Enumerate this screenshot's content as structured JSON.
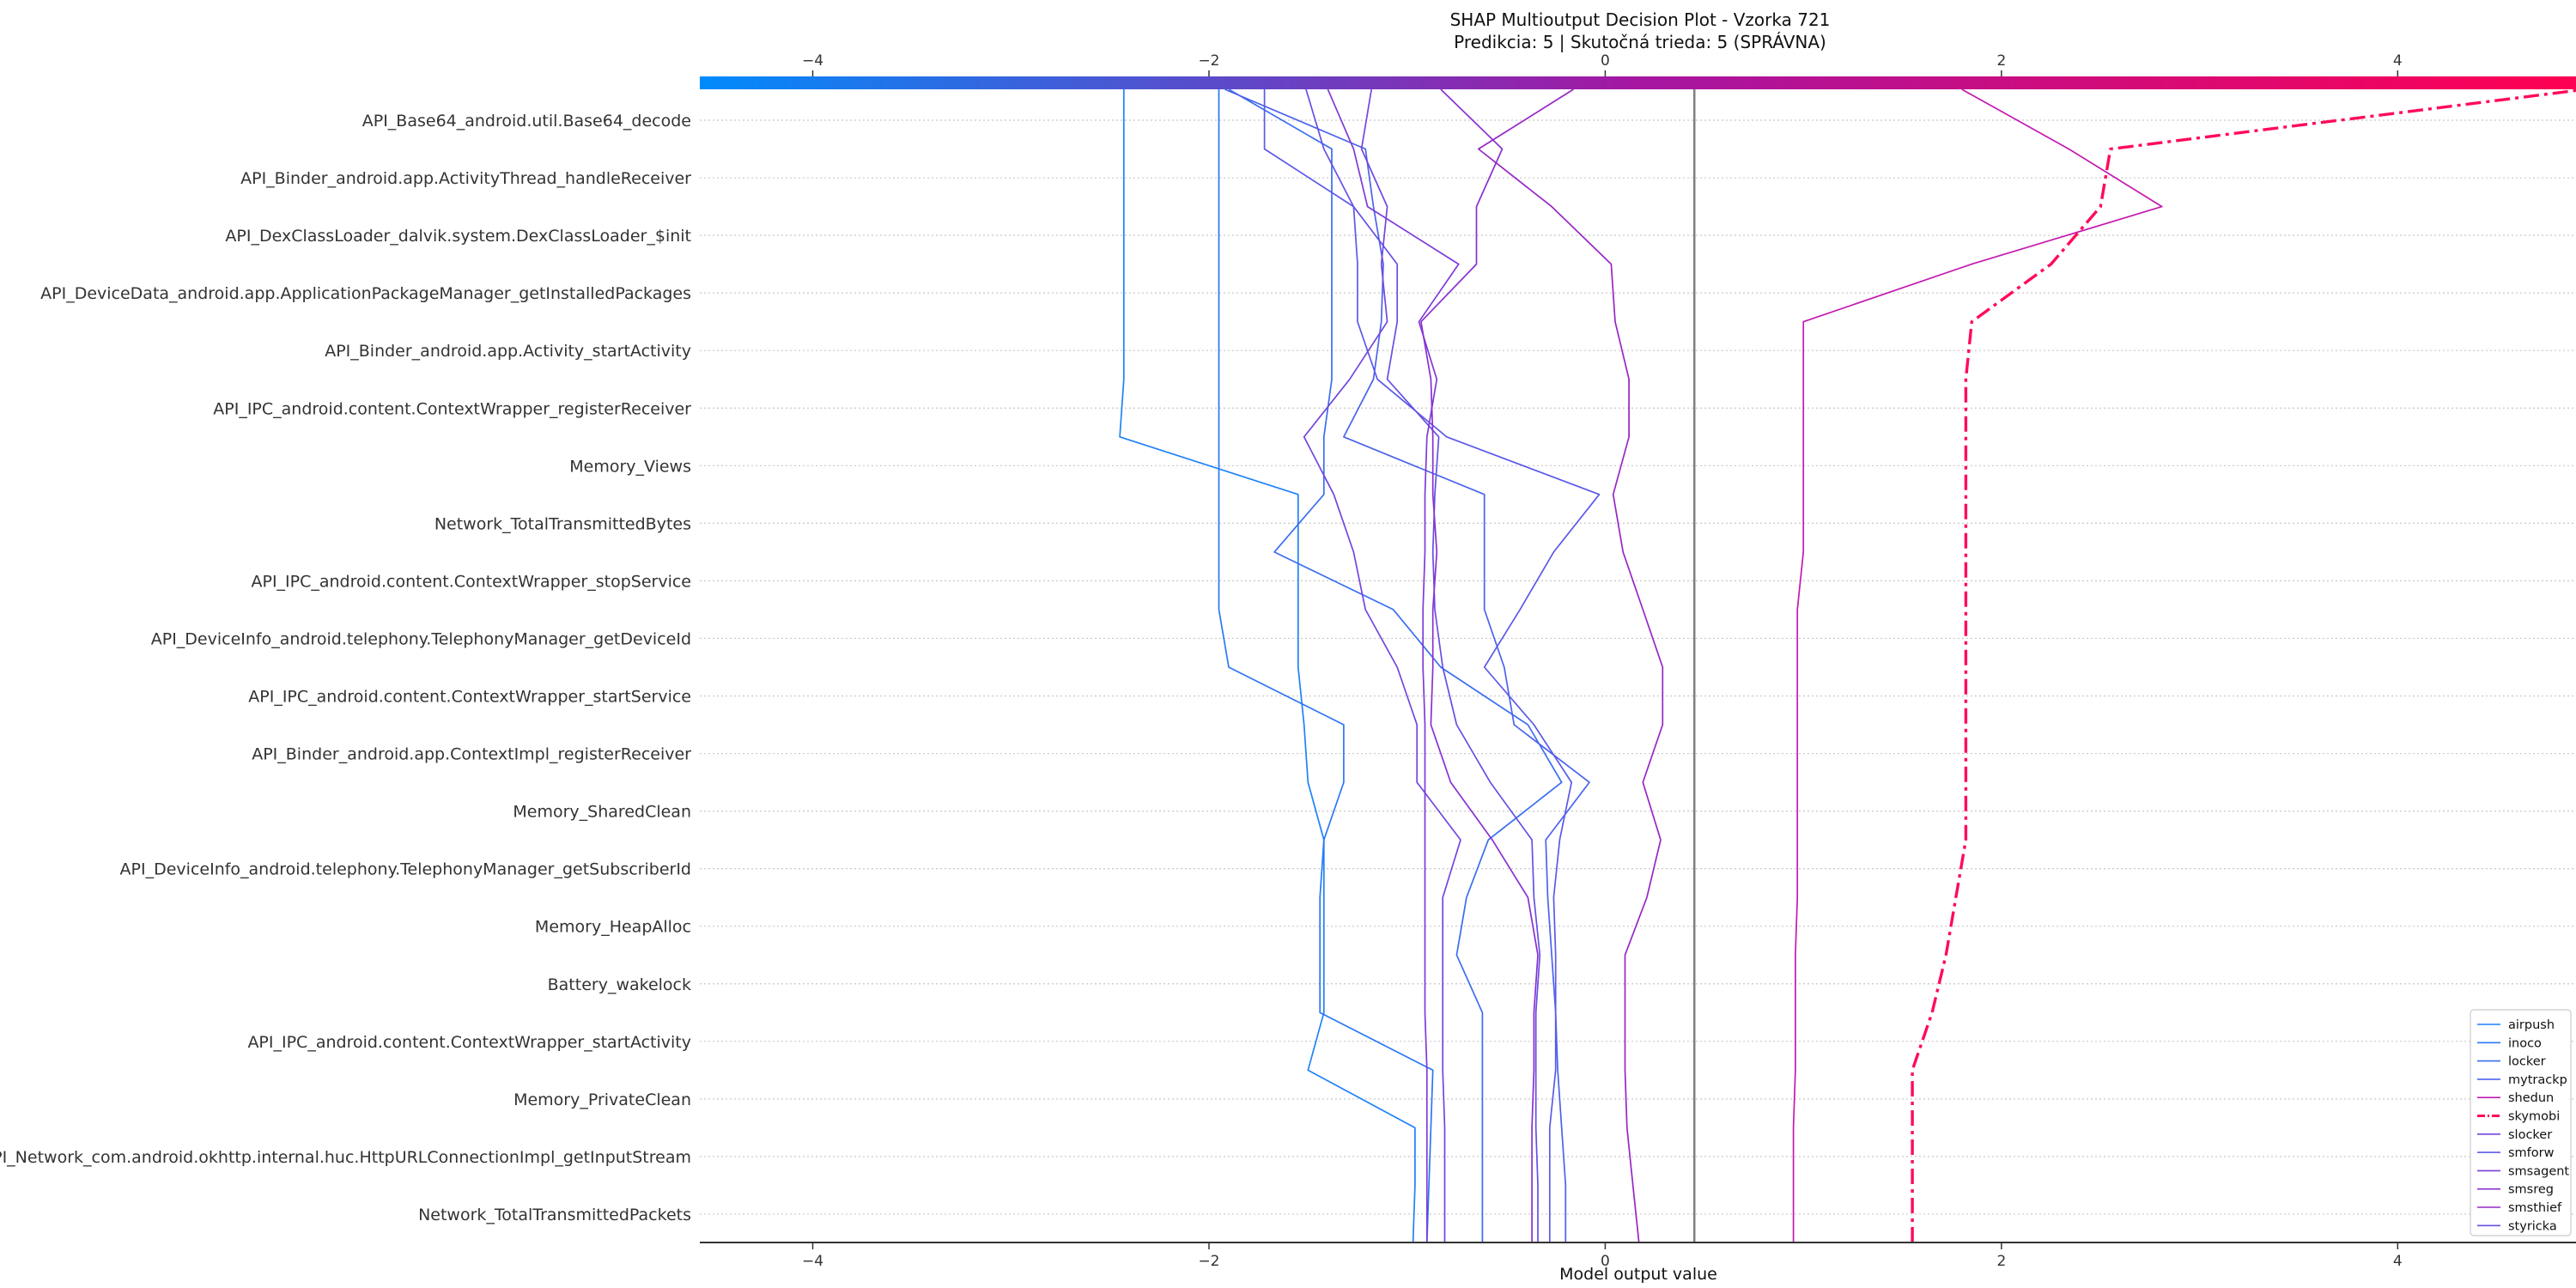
{
  "chart_data": {
    "type": "line",
    "title": "SHAP Multioutput Decision Plot - Vzorka 721",
    "subtitle": "Predikcia: 5 | Skutočná trieda: 5 (SPRÁVNA)",
    "xlabel": "Model output value",
    "xlim": [
      -4.57,
      4.9
    ],
    "x_ticks": [
      -4,
      -2,
      0,
      2,
      4
    ],
    "x_tick_labels": [
      "−4",
      "−2",
      "0",
      "2",
      "4"
    ],
    "base_value": 0.45,
    "colorbar": {
      "from": "#008bfb",
      "mid": "#a516a1",
      "to": "#ff0052"
    },
    "legend_position": "bottom-right",
    "features": [
      "API_Base64_android.util.Base64_decode",
      "API_Binder_android.app.ActivityThread_handleReceiver",
      "API_DexClassLoader_dalvik.system.DexClassLoader_$init",
      "API_DeviceData_android.app.ApplicationPackageManager_getInstalledPackages",
      "API_Binder_android.app.Activity_startActivity",
      "API_IPC_android.content.ContextWrapper_registerReceiver",
      "Memory_Views",
      "Network_TotalTransmittedBytes",
      "API_IPC_android.content.ContextWrapper_stopService",
      "API_DeviceInfo_android.telephony.TelephonyManager_getDeviceId",
      "API_IPC_android.content.ContextWrapper_startService",
      "API_Binder_android.app.ContextImpl_registerReceiver",
      "Memory_SharedClean",
      "API_DeviceInfo_android.telephony.TelephonyManager_getSubscriberId",
      "Memory_HeapAlloc",
      "Battery_wakelock",
      "API_IPC_android.content.ContextWrapper_startActivity",
      "Memory_PrivateClean",
      "API_Network_com.android.okhttp.internal.huc.HttpURLConnectionImpl_getInputStream",
      "Network_TotalTransmittedPackets"
    ],
    "series_note": "values listed from bottom of plot (base) to top (final output); 21 points per series",
    "series": [
      {
        "name": "airpush",
        "color": "#1e82f8",
        "dash": false,
        "values": [
          -0.97,
          -0.96,
          -0.96,
          -1.5,
          -1.42,
          -1.42,
          -1.42,
          -1.42,
          -1.5,
          -1.52,
          -1.55,
          -1.55,
          -1.55,
          -1.55,
          -2.45,
          -2.43,
          -2.43,
          -2.43,
          -2.43,
          -2.43,
          -2.43
        ]
      },
      {
        "name": "inoco",
        "color": "#2a78f4",
        "dash": false,
        "values": [
          -0.9,
          -0.89,
          -0.88,
          -0.87,
          -1.44,
          -1.44,
          -1.44,
          -1.42,
          -1.32,
          -1.32,
          -1.9,
          -1.95,
          -1.95,
          -1.95,
          -1.95,
          -1.95,
          -1.95,
          -1.95,
          -1.95,
          -1.95,
          -1.95
        ]
      },
      {
        "name": "locker",
        "color": "#3a6ef0",
        "dash": false,
        "values": [
          -0.62,
          -0.62,
          -0.62,
          -0.62,
          -0.62,
          -0.75,
          -0.7,
          -0.59,
          -0.22,
          -0.39,
          -0.83,
          -1.07,
          -1.67,
          -1.42,
          -1.42,
          -1.38,
          -1.38,
          -1.38,
          -1.38,
          -1.38,
          -1.9
        ]
      },
      {
        "name": "mytrackp",
        "color": "#4c63ec",
        "dash": false,
        "values": [
          -0.2,
          -0.2,
          -0.22,
          -0.24,
          -0.25,
          -0.27,
          -0.29,
          -0.3,
          -0.08,
          -0.46,
          -0.51,
          -0.61,
          -0.61,
          -0.61,
          -1.32,
          -1.17,
          -1.13,
          -1.12,
          -1.17,
          -1.21,
          -1.92
        ]
      },
      {
        "name": "smforw",
        "color": "#5c5ae7",
        "dash": false,
        "values": [
          -0.28,
          -0.28,
          -0.28,
          -0.25,
          -0.25,
          -0.25,
          -0.26,
          -0.23,
          -0.17,
          -0.36,
          -0.61,
          -0.43,
          -0.26,
          -0.03,
          -0.8,
          -1.15,
          -1.25,
          -1.25,
          -1.27,
          -1.72,
          -1.72
        ]
      },
      {
        "name": "styricka",
        "color": "#6650e3",
        "dash": false,
        "values": [
          -0.34,
          -0.34,
          -0.35,
          -0.35,
          -0.35,
          -0.33,
          -0.36,
          -0.37,
          -0.58,
          -0.75,
          -0.82,
          -0.86,
          -0.87,
          -0.86,
          -0.84,
          -1.1,
          -1.05,
          -1.05,
          -1.27,
          -1.42,
          -1.51
        ]
      },
      {
        "name": "slocker",
        "color": "#7346de",
        "dash": false,
        "values": [
          -0.81,
          -0.81,
          -0.81,
          -0.82,
          -0.82,
          -0.82,
          -0.82,
          -0.73,
          -0.95,
          -0.95,
          -1.05,
          -1.21,
          -1.27,
          -1.37,
          -1.52,
          -1.29,
          -1.1,
          -1.13,
          -1.1,
          -1.23,
          -1.18
        ]
      },
      {
        "name": "smsagent",
        "color": "#7e3bd8",
        "dash": false,
        "values": [
          -0.9,
          -0.9,
          -0.9,
          -0.9,
          -0.91,
          -0.91,
          -0.91,
          -0.91,
          -0.91,
          -0.91,
          -0.92,
          -0.92,
          -0.91,
          -0.91,
          -0.9,
          -0.85,
          -0.94,
          -0.74,
          -1.2,
          -1.27,
          -1.4
        ]
      },
      {
        "name": "smsreg",
        "color": "#8a30d0",
        "dash": false,
        "values": [
          -0.37,
          -0.37,
          -0.37,
          -0.36,
          -0.36,
          -0.34,
          -0.39,
          -0.57,
          -0.78,
          -0.88,
          -0.87,
          -0.87,
          -0.85,
          -0.87,
          -0.87,
          -0.88,
          -0.93,
          -0.65,
          -0.65,
          -0.52,
          -0.83
        ]
      },
      {
        "name": "smsthief",
        "color": "#9826c6",
        "dash": false,
        "values": [
          0.17,
          0.14,
          0.11,
          0.1,
          0.1,
          0.1,
          0.21,
          0.28,
          0.19,
          0.29,
          0.29,
          0.19,
          0.09,
          0.04,
          0.12,
          0.12,
          0.05,
          0.03,
          -0.27,
          -0.64,
          -0.16
        ]
      },
      {
        "name": "shedun",
        "color": "#c41ab0",
        "dash": false,
        "values": [
          0.95,
          0.95,
          0.95,
          0.96,
          0.96,
          0.96,
          0.97,
          0.97,
          0.97,
          0.97,
          0.97,
          0.97,
          1.0,
          1.0,
          1.0,
          1.0,
          1.0,
          1.85,
          2.81,
          2.34,
          1.8
        ]
      },
      {
        "name": "skymobi",
        "color": "#ff0b5a",
        "dash": true,
        "values": [
          1.55,
          1.55,
          1.55,
          1.55,
          1.65,
          1.72,
          1.77,
          1.82,
          1.82,
          1.82,
          1.82,
          1.82,
          1.82,
          1.82,
          1.82,
          1.82,
          1.85,
          2.25,
          2.5,
          2.55,
          4.95
        ]
      }
    ]
  }
}
